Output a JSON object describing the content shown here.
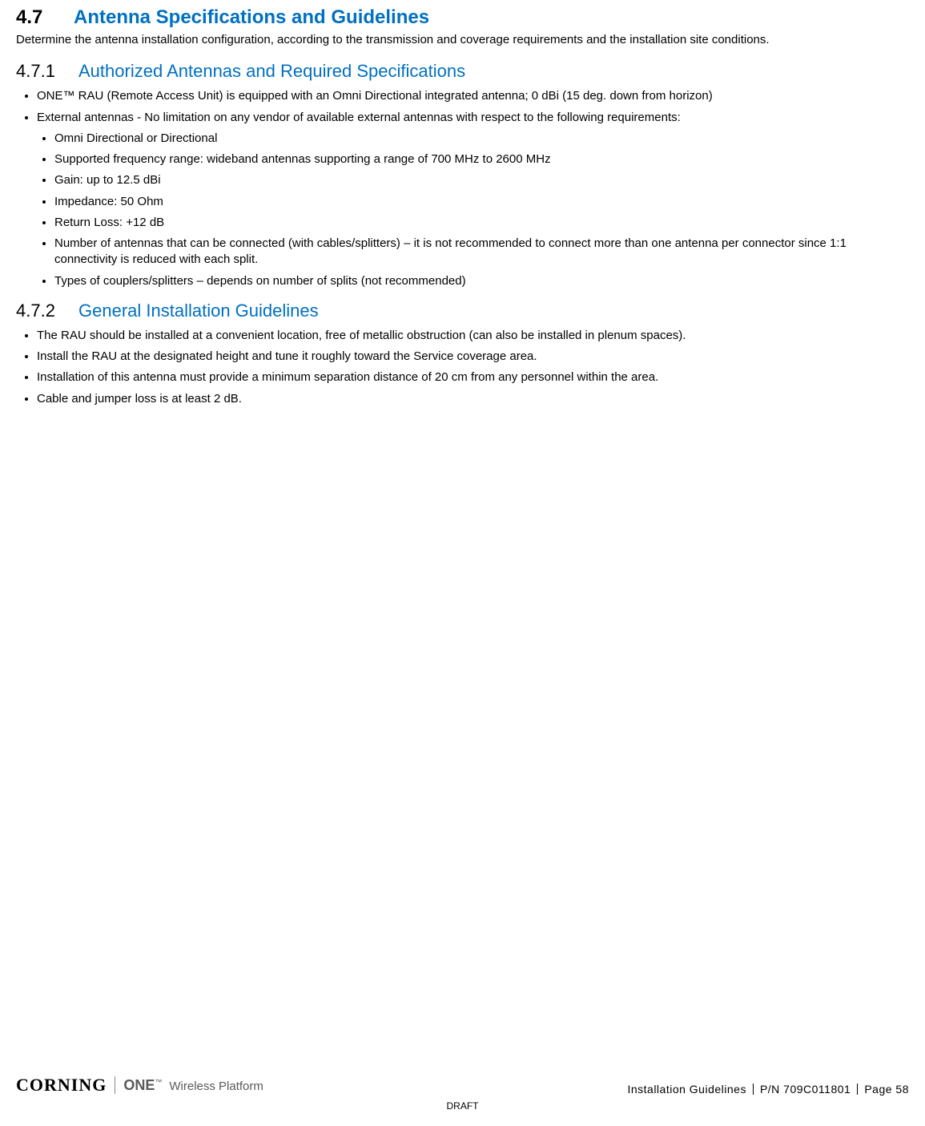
{
  "colors": {
    "heading_blue": "#0070c0",
    "body_text": "#000000",
    "footer_gray": "#5a5a5a",
    "background": "#ffffff"
  },
  "typography": {
    "h1_fontsize": 24,
    "h2_fontsize": 22,
    "body_fontsize": 15,
    "footer_fontsize": 14
  },
  "section": {
    "number": "4.7",
    "title": "Antenna Specifications and Guidelines",
    "intro": "Determine the antenna installation configuration, according to the transmission and coverage requirements and the installation site conditions."
  },
  "sub1": {
    "number": "4.7.1",
    "title": "Authorized Antennas and Required Specifications",
    "items": [
      "ONE™ RAU (Remote Access Unit) is equipped   with an Omni Directional integrated antenna; 0 dBi (15 deg. down from horizon)",
      "External antennas - No limitation on any vendor of available external antennas with respect to the following requirements:"
    ],
    "subitems": [
      "Omni Directional or Directional",
      "Supported frequency range: wideband antennas supporting a range of 700 MHz to 2600 MHz",
      "Gain: up to 12.5 dBi",
      "Impedance: 50 Ohm",
      "Return Loss: +12 dB",
      "Number of antennas that can be connected (with cables/splitters) – it is not recommended to connect more than one antenna per connector since 1:1 connectivity is reduced with each split.",
      "Types of couplers/splitters – depends on number of splits (not recommended)"
    ]
  },
  "sub2": {
    "number": "4.7.2",
    "title": "General Installation Guidelines",
    "items": [
      "The RAU should be installed at a convenient location, free of metallic obstruction (can also be installed in plenum spaces).",
      "Install the RAU at the designated height and tune it roughly toward the Service coverage area.",
      "Installation of this antenna must provide a minimum separation distance of 20 cm from any personnel within the area.",
      "Cable and jumper loss is at least 2 dB."
    ]
  },
  "footer": {
    "brand": "CORNING",
    "product_bold": "ONE",
    "product_tm": "™",
    "product_tagline": "Wireless Platform",
    "doc_title": "Installation Guidelines",
    "pn_label": "P/N 709C011801",
    "page_label": "Page 58",
    "draft": "DRAFT"
  }
}
